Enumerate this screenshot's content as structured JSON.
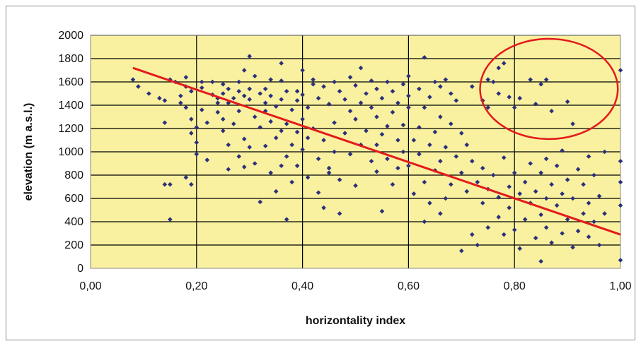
{
  "chart_data": {
    "type": "scatter",
    "title": "",
    "xlabel": "horizontality index",
    "ylabel": "elevation (m a.s.l.)",
    "xlim": [
      0.0,
      1.0
    ],
    "ylim": [
      0,
      2000
    ],
    "grid": true,
    "legend": "none",
    "x_ticks": [
      0.0,
      0.2,
      0.4,
      0.6,
      0.8,
      1.0
    ],
    "x_tick_labels": [
      "0,00",
      "0,20",
      "0,40",
      "0,60",
      "0,80",
      "1,00"
    ],
    "y_ticks": [
      0,
      200,
      400,
      600,
      800,
      1000,
      1200,
      1400,
      1600,
      1800,
      2000
    ],
    "y_tick_labels": [
      "0",
      "200",
      "400",
      "600",
      "800",
      "1000",
      "1200",
      "1400",
      "1600",
      "1800",
      "2000"
    ],
    "colors": {
      "plot_background": "#f9f1a0",
      "marker": "#2b2f7c",
      "trendline": "#e41a1c",
      "annotation": "#e41a1c",
      "grid": "#000000"
    },
    "trendline": {
      "x": [
        0.08,
        1.0
      ],
      "y": [
        1720,
        290
      ]
    },
    "annotation_ellipse": {
      "center_x": 0.865,
      "center_y": 1540,
      "radius_x": 0.13,
      "radius_y": 430
    },
    "series": [
      {
        "marker": "diamond",
        "points": [
          [
            0.08,
            1620
          ],
          [
            0.09,
            1560
          ],
          [
            0.11,
            1500
          ],
          [
            0.13,
            1460
          ],
          [
            0.14,
            1440
          ],
          [
            0.14,
            1250
          ],
          [
            0.14,
            720
          ],
          [
            0.15,
            720
          ],
          [
            0.15,
            420
          ],
          [
            0.15,
            1620
          ],
          [
            0.16,
            1600
          ],
          [
            0.17,
            1480
          ],
          [
            0.17,
            1420
          ],
          [
            0.18,
            1560
          ],
          [
            0.18,
            1640
          ],
          [
            0.18,
            1380
          ],
          [
            0.18,
            780
          ],
          [
            0.19,
            720
          ],
          [
            0.19,
            1520
          ],
          [
            0.19,
            1280
          ],
          [
            0.19,
            1160
          ],
          [
            0.2,
            1080
          ],
          [
            0.2,
            980
          ],
          [
            0.2,
            1210
          ],
          [
            0.21,
            1600
          ],
          [
            0.21,
            1550
          ],
          [
            0.21,
            1360
          ],
          [
            0.22,
            1250
          ],
          [
            0.22,
            930
          ],
          [
            0.23,
            1600
          ],
          [
            0.23,
            1490
          ],
          [
            0.24,
            1460
          ],
          [
            0.24,
            1420
          ],
          [
            0.24,
            1340
          ],
          [
            0.25,
            1580
          ],
          [
            0.25,
            1500
          ],
          [
            0.25,
            1280
          ],
          [
            0.25,
            1180
          ],
          [
            0.26,
            1540
          ],
          [
            0.26,
            1420
          ],
          [
            0.26,
            1060
          ],
          [
            0.26,
            850
          ],
          [
            0.27,
            1460
          ],
          [
            0.27,
            1240
          ],
          [
            0.28,
            1600
          ],
          [
            0.28,
            1520
          ],
          [
            0.28,
            1350
          ],
          [
            0.28,
            960
          ],
          [
            0.29,
            1700
          ],
          [
            0.29,
            1480
          ],
          [
            0.29,
            1110
          ],
          [
            0.29,
            870
          ],
          [
            0.3,
            1820
          ],
          [
            0.3,
            1540
          ],
          [
            0.3,
            1450
          ],
          [
            0.3,
            1040
          ],
          [
            0.31,
            1650
          ],
          [
            0.31,
            1300
          ],
          [
            0.31,
            900
          ],
          [
            0.32,
            1500
          ],
          [
            0.32,
            1210
          ],
          [
            0.32,
            570
          ],
          [
            0.33,
            1540
          ],
          [
            0.33,
            1420
          ],
          [
            0.33,
            1350
          ],
          [
            0.33,
            1050
          ],
          [
            0.34,
            1620
          ],
          [
            0.34,
            1480
          ],
          [
            0.34,
            1260
          ],
          [
            0.34,
            820
          ],
          [
            0.35,
            1390
          ],
          [
            0.35,
            1120
          ],
          [
            0.35,
            660
          ],
          [
            0.36,
            1760
          ],
          [
            0.36,
            1610
          ],
          [
            0.36,
            1450
          ],
          [
            0.36,
            1180
          ],
          [
            0.36,
            880
          ],
          [
            0.37,
            420
          ],
          [
            0.37,
            1520
          ],
          [
            0.37,
            1240
          ],
          [
            0.37,
            960
          ],
          [
            0.38,
            1360
          ],
          [
            0.38,
            1060
          ],
          [
            0.38,
            740
          ],
          [
            0.39,
            1520
          ],
          [
            0.39,
            1440
          ],
          [
            0.39,
            1170
          ],
          [
            0.39,
            880
          ],
          [
            0.4,
            1700
          ],
          [
            0.4,
            1490
          ],
          [
            0.4,
            1280
          ],
          [
            0.4,
            1020
          ],
          [
            0.41,
            1380
          ],
          [
            0.41,
            1120
          ],
          [
            0.41,
            780
          ],
          [
            0.42,
            1620
          ],
          [
            0.42,
            1580
          ],
          [
            0.42,
            1200
          ],
          [
            0.43,
            1460
          ],
          [
            0.43,
            940
          ],
          [
            0.43,
            650
          ],
          [
            0.44,
            1560
          ],
          [
            0.44,
            1100
          ],
          [
            0.44,
            520
          ],
          [
            0.45,
            1410
          ],
          [
            0.45,
            860
          ],
          [
            0.45,
            820
          ],
          [
            0.46,
            1600
          ],
          [
            0.46,
            1250
          ],
          [
            0.46,
            1000
          ],
          [
            0.47,
            1520
          ],
          [
            0.47,
            760
          ],
          [
            0.47,
            470
          ],
          [
            0.48,
            1450
          ],
          [
            0.48,
            1160
          ],
          [
            0.49,
            1640
          ],
          [
            0.49,
            1350
          ],
          [
            0.49,
            980
          ],
          [
            0.5,
            1570
          ],
          [
            0.5,
            1280
          ],
          [
            0.5,
            710
          ],
          [
            0.51,
            1720
          ],
          [
            0.51,
            1420
          ],
          [
            0.51,
            1060
          ],
          [
            0.52,
            1500
          ],
          [
            0.52,
            1180
          ],
          [
            0.53,
            1610
          ],
          [
            0.53,
            1380
          ],
          [
            0.53,
            920
          ],
          [
            0.54,
            1540
          ],
          [
            0.54,
            1300
          ],
          [
            0.54,
            1060
          ],
          [
            0.54,
            830
          ],
          [
            0.55,
            1460
          ],
          [
            0.55,
            1150
          ],
          [
            0.55,
            490
          ],
          [
            0.56,
            1600
          ],
          [
            0.56,
            1220
          ],
          [
            0.56,
            940
          ],
          [
            0.57,
            1520
          ],
          [
            0.57,
            1340
          ],
          [
            0.57,
            720
          ],
          [
            0.58,
            1420
          ],
          [
            0.58,
            1100
          ],
          [
            0.58,
            860
          ],
          [
            0.59,
            1580
          ],
          [
            0.59,
            1230
          ],
          [
            0.59,
            1000
          ],
          [
            0.6,
            1650
          ],
          [
            0.6,
            1480
          ],
          [
            0.6,
            1380
          ],
          [
            0.6,
            880
          ],
          [
            0.61,
            1100
          ],
          [
            0.61,
            640
          ],
          [
            0.62,
            1540
          ],
          [
            0.62,
            1210
          ],
          [
            0.62,
            980
          ],
          [
            0.63,
            1810
          ],
          [
            0.63,
            1380
          ],
          [
            0.63,
            740
          ],
          [
            0.63,
            400
          ],
          [
            0.64,
            1470
          ],
          [
            0.64,
            1060
          ],
          [
            0.64,
            560
          ],
          [
            0.65,
            1600
          ],
          [
            0.65,
            1170
          ],
          [
            0.65,
            840
          ],
          [
            0.66,
            1560
          ],
          [
            0.66,
            1300
          ],
          [
            0.66,
            920
          ],
          [
            0.66,
            470
          ],
          [
            0.67,
            1620
          ],
          [
            0.67,
            1040
          ],
          [
            0.67,
            600
          ],
          [
            0.68,
            1500
          ],
          [
            0.68,
            1240
          ],
          [
            0.68,
            720
          ],
          [
            0.69,
            1440
          ],
          [
            0.69,
            960
          ],
          [
            0.7,
            1160
          ],
          [
            0.7,
            820
          ],
          [
            0.7,
            150
          ],
          [
            0.71,
            1060
          ],
          [
            0.71,
            660
          ],
          [
            0.72,
            1560
          ],
          [
            0.72,
            920
          ],
          [
            0.72,
            290
          ],
          [
            0.73,
            740
          ],
          [
            0.73,
            200
          ],
          [
            0.74,
            1440
          ],
          [
            0.74,
            860
          ],
          [
            0.74,
            560
          ],
          [
            0.75,
            1620
          ],
          [
            0.75,
            1380
          ],
          [
            0.75,
            680
          ],
          [
            0.75,
            350
          ],
          [
            0.76,
            1600
          ],
          [
            0.76,
            800
          ],
          [
            0.77,
            1720
          ],
          [
            0.77,
            1500
          ],
          [
            0.77,
            610
          ],
          [
            0.77,
            440
          ],
          [
            0.78,
            1760
          ],
          [
            0.78,
            950
          ],
          [
            0.78,
            290
          ],
          [
            0.79,
            1470
          ],
          [
            0.79,
            700
          ],
          [
            0.79,
            520
          ],
          [
            0.8,
            1380
          ],
          [
            0.8,
            820
          ],
          [
            0.8,
            330
          ],
          [
            0.81,
            1460
          ],
          [
            0.81,
            640
          ],
          [
            0.81,
            170
          ],
          [
            0.82,
            740
          ],
          [
            0.82,
            420
          ],
          [
            0.83,
            1620
          ],
          [
            0.83,
            900
          ],
          [
            0.83,
            560
          ],
          [
            0.84,
            1410
          ],
          [
            0.84,
            660
          ],
          [
            0.84,
            260
          ],
          [
            0.85,
            1580
          ],
          [
            0.85,
            820
          ],
          [
            0.85,
            460
          ],
          [
            0.85,
            60
          ],
          [
            0.86,
            1620
          ],
          [
            0.86,
            940
          ],
          [
            0.86,
            600
          ],
          [
            0.86,
            350
          ],
          [
            0.87,
            1350
          ],
          [
            0.87,
            720
          ],
          [
            0.87,
            220
          ],
          [
            0.88,
            880
          ],
          [
            0.88,
            540
          ],
          [
            0.89,
            1010
          ],
          [
            0.89,
            640
          ],
          [
            0.89,
            300
          ],
          [
            0.9,
            1430
          ],
          [
            0.9,
            760
          ],
          [
            0.9,
            420
          ],
          [
            0.91,
            1240
          ],
          [
            0.91,
            600
          ],
          [
            0.91,
            180
          ],
          [
            0.92,
            850
          ],
          [
            0.92,
            320
          ],
          [
            0.93,
            720
          ],
          [
            0.93,
            470
          ],
          [
            0.94,
            960
          ],
          [
            0.94,
            560
          ],
          [
            0.94,
            270
          ],
          [
            0.95,
            800
          ],
          [
            0.95,
            400
          ],
          [
            0.96,
            620
          ],
          [
            0.96,
            200
          ],
          [
            0.97,
            1000
          ],
          [
            0.97,
            470
          ],
          [
            1.0,
            1700
          ],
          [
            1.0,
            920
          ],
          [
            1.0,
            740
          ],
          [
            1.0,
            540
          ],
          [
            1.0,
            70
          ]
        ]
      }
    ]
  }
}
